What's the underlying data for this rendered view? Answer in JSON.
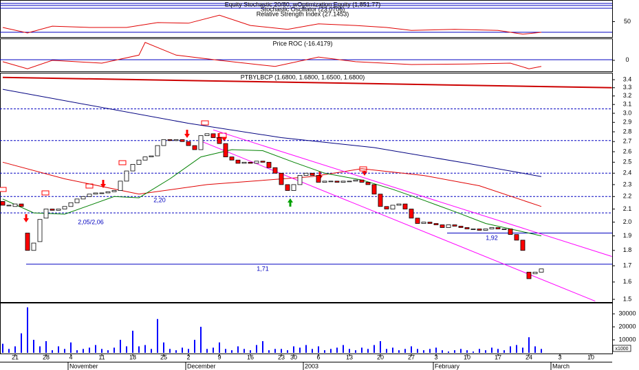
{
  "chart_data": [
    {
      "type": "line",
      "titles": [
        "Equity Stochastic 20/80, wOptimization Equity (1,851.77)",
        "Stochastic Oscillator (23.0706)",
        "Relative Strength Index (27.1453)"
      ],
      "ylim": [
        0,
        100
      ],
      "yticks": [
        50
      ],
      "series": [
        {
          "color": "#e00000",
          "x": [
            0,
            4,
            8,
            14,
            20,
            25,
            30,
            35,
            40,
            46,
            51,
            57,
            62,
            66,
            73,
            80,
            84,
            87
          ],
          "values": [
            32,
            15,
            36,
            32,
            32,
            47,
            45,
            70,
            38,
            26,
            43,
            38,
            32,
            23,
            26,
            23,
            11,
            17
          ]
        }
      ]
    },
    {
      "type": "line",
      "titles": [
        "Price ROC (-16.4179)"
      ],
      "ylim": [
        -25,
        45
      ],
      "yticks": [
        0
      ],
      "series": [
        {
          "color": "#e00000",
          "x": [
            0,
            4,
            8,
            16,
            22,
            23,
            28,
            35,
            44,
            51,
            57,
            66,
            75,
            82,
            85,
            87
          ],
          "values": [
            -3,
            -18,
            0,
            -6,
            11,
            38,
            11,
            0,
            -13,
            7,
            -3,
            -9,
            -8,
            -6,
            -18,
            -13
          ]
        }
      ]
    },
    {
      "type": "candlestick",
      "titles": [
        "PTBYLBCP (1.6800, 1.6800, 1.6500, 1.6800)"
      ],
      "log": true,
      "ylim": [
        1.485,
        3.48
      ],
      "yticks": [
        3.4,
        3.3,
        3.2,
        3.1,
        {
          "value": 3,
          "label": "3.0"
        },
        2.9,
        2.8,
        2.7,
        2.6,
        2.5,
        2.4,
        2.3,
        2.2,
        2.1,
        {
          "value": 2,
          "label": "2.0"
        },
        1.9,
        1.8,
        1.7,
        1.6,
        1.5
      ],
      "categories": [
        null,
        null,
        "21",
        null,
        null,
        null,
        null,
        "28",
        null,
        null,
        null,
        "4",
        null,
        null,
        null,
        null,
        "11",
        null,
        null,
        null,
        null,
        "18",
        null,
        null,
        null,
        null,
        "25",
        null,
        null,
        null,
        "2",
        null,
        null,
        null,
        null,
        "9",
        null,
        null,
        null,
        null,
        "16",
        null,
        null,
        null,
        null,
        "23",
        null,
        "30",
        null,
        null,
        null,
        "6",
        null,
        null,
        null,
        null,
        "13",
        null,
        null,
        null,
        null,
        "20",
        null,
        null,
        null,
        null,
        "27",
        null,
        null,
        null,
        "3",
        null,
        null,
        null,
        null,
        "10",
        null,
        null,
        null,
        null,
        "17",
        null,
        null,
        null,
        null,
        "24",
        null,
        null,
        null,
        null,
        "3",
        null,
        null,
        null,
        null,
        "10",
        null,
        null,
        null
      ],
      "months": [
        null,
        null,
        null,
        null,
        null,
        null,
        null,
        null,
        null,
        null,
        null,
        "November",
        null,
        null,
        null,
        null,
        null,
        null,
        null,
        null,
        null,
        null,
        null,
        null,
        null,
        null,
        null,
        null,
        null,
        null,
        "December",
        null,
        null,
        null,
        null,
        null,
        null,
        null,
        null,
        null,
        null,
        null,
        null,
        null,
        null,
        null,
        null,
        null,
        null,
        "2003",
        null,
        null,
        null,
        null,
        null,
        null,
        null,
        null,
        null,
        null,
        null,
        null,
        null,
        null,
        null,
        null,
        null,
        null,
        null,
        null,
        "February",
        null,
        null,
        null,
        null,
        null,
        null,
        null,
        null,
        null,
        null,
        null,
        null,
        null,
        null,
        null,
        null,
        null,
        null,
        "March",
        null,
        null,
        null,
        null,
        null,
        null,
        null,
        null,
        null
      ],
      "open": [
        2.16,
        2.13,
        2.12,
        2.14,
        1.92,
        1.8,
        1.86,
        2.03,
        2.1,
        2.09,
        2.1,
        2.12,
        2.15,
        2.18,
        2.2,
        2.22,
        2.23,
        2.23,
        2.24,
        2.25,
        2.33,
        2.42,
        2.48,
        2.52,
        2.55,
        2.56,
        2.66,
        2.72,
        2.71,
        2.72,
        2.7,
        2.66,
        2.62,
        2.76,
        2.78,
        2.74,
        2.68,
        2.55,
        2.52,
        2.49,
        2.5,
        2.49,
        2.51,
        2.5,
        2.45,
        2.4,
        2.3,
        2.25,
        2.3,
        2.38,
        2.4,
        2.38,
        2.32,
        2.33,
        2.33,
        2.32,
        2.33,
        2.33,
        2.34,
        2.32,
        2.3,
        2.22,
        2.12,
        2.1,
        2.13,
        2.14,
        2.1,
        2.03,
        1.99,
        2.0,
        1.99,
        1.98,
        1.96,
        1.98,
        1.97,
        1.96,
        1.95,
        1.95,
        1.94,
        1.95,
        1.96,
        1.95,
        1.95,
        1.91,
        1.87,
        1.66,
        1.65,
        1.66,
        null,
        null,
        null,
        null,
        null,
        null,
        null,
        null,
        null,
        null,
        null
      ],
      "close": [
        2.13,
        2.13,
        2.14,
        2.12,
        1.8,
        1.85,
        2.02,
        2.1,
        2.09,
        2.1,
        2.12,
        2.15,
        2.18,
        2.2,
        2.22,
        2.23,
        2.23,
        2.24,
        2.25,
        2.33,
        2.42,
        2.48,
        2.52,
        2.55,
        2.56,
        2.66,
        2.72,
        2.71,
        2.72,
        2.7,
        2.66,
        2.62,
        2.76,
        2.78,
        2.74,
        2.68,
        2.55,
        2.52,
        2.49,
        2.5,
        2.49,
        2.51,
        2.5,
        2.45,
        2.4,
        2.3,
        2.25,
        2.3,
        2.38,
        2.4,
        2.38,
        2.32,
        2.33,
        2.33,
        2.32,
        2.33,
        2.33,
        2.34,
        2.32,
        2.3,
        2.22,
        2.12,
        2.1,
        2.13,
        2.14,
        2.1,
        2.03,
        1.99,
        2.0,
        1.99,
        1.98,
        1.96,
        1.98,
        1.97,
        1.96,
        1.95,
        1.95,
        1.94,
        1.95,
        1.96,
        1.95,
        1.95,
        1.91,
        1.87,
        1.8,
        1.62,
        1.66,
        1.68,
        null,
        null,
        null,
        null,
        null,
        null,
        null,
        null,
        null,
        null,
        null
      ],
      "up_color": "#ffffff",
      "down_color": "#ff0000",
      "lines": [
        {
          "color": "#cc0000",
          "x": [
            0,
            98.4
          ],
          "values": [
            3.43,
            3.3
          ]
        },
        {
          "color": "#000080",
          "x": [
            0,
            30,
            45,
            60,
            75,
            87
          ],
          "values": [
            3.28,
            2.89,
            2.74,
            2.64,
            2.49,
            2.37
          ]
        },
        {
          "color": "#e00000",
          "x": [
            0,
            10,
            22,
            33,
            50,
            58,
            68,
            77,
            87
          ],
          "values": [
            2.5,
            2.35,
            2.22,
            2.3,
            2.37,
            2.44,
            2.38,
            2.29,
            2.12
          ]
        },
        {
          "color": "#008000",
          "x": [
            0,
            5,
            10,
            18,
            22,
            27,
            32,
            37,
            42,
            47,
            52,
            58,
            63,
            68,
            73,
            78,
            83,
            87
          ],
          "values": [
            2.18,
            2.07,
            2.06,
            2.2,
            2.19,
            2.35,
            2.55,
            2.62,
            2.61,
            2.5,
            2.4,
            2.34,
            2.26,
            2.17,
            2.08,
            1.99,
            1.94,
            1.9
          ]
        },
        {
          "color": "#ff00ff",
          "x": [
            34,
            98.4
          ],
          "values": [
            2.82,
            1.76
          ]
        },
        {
          "color": "#ff00ff",
          "x": [
            31.8,
            95.7
          ],
          "values": [
            2.71,
            1.49
          ]
        }
      ],
      "levels": [
        3.05,
        2.71,
        2.4,
        2.2,
        2.07
      ],
      "annotations": [
        "2,20",
        "2,05/2,06"
      ],
      "support_lines": [
        {
          "value": 1.71,
          "label": "1,71"
        },
        {
          "value": 1.92,
          "label": "1,92"
        }
      ]
    },
    {
      "type": "bar",
      "ylim": [
        0,
        38000
      ],
      "yticks": [
        30000,
        20000,
        10000
      ],
      "unit_label": "x1000",
      "color": "#0000ff",
      "values": [
        7000,
        3000,
        5000,
        15000,
        35000,
        10000,
        5000,
        9000,
        2000,
        5000,
        3000,
        8000,
        2000,
        3000,
        4000,
        6000,
        3000,
        2000,
        4000,
        10000,
        5000,
        17000,
        5000,
        6000,
        3000,
        26000,
        8000,
        3000,
        2000,
        4000,
        3000,
        10000,
        20000,
        3000,
        4000,
        8000,
        3000,
        2000,
        5000,
        3000,
        2000,
        6000,
        9000,
        2000,
        3000,
        3000,
        2000,
        5000,
        4000,
        6000,
        3000,
        5000,
        2000,
        3000,
        4000,
        6000,
        3000,
        2000,
        4000,
        3000,
        6000,
        9000,
        3000,
        4000,
        2000,
        3000,
        5000,
        3000,
        2000,
        3000,
        4000,
        2000,
        1000,
        2000,
        3000,
        2000,
        1000,
        3000,
        2000,
        4000,
        3000,
        2000,
        5000,
        6000,
        4000,
        12000,
        5000,
        3000,
        null,
        null,
        null,
        null,
        null,
        null,
        null,
        null,
        null,
        null,
        null
      ]
    }
  ]
}
